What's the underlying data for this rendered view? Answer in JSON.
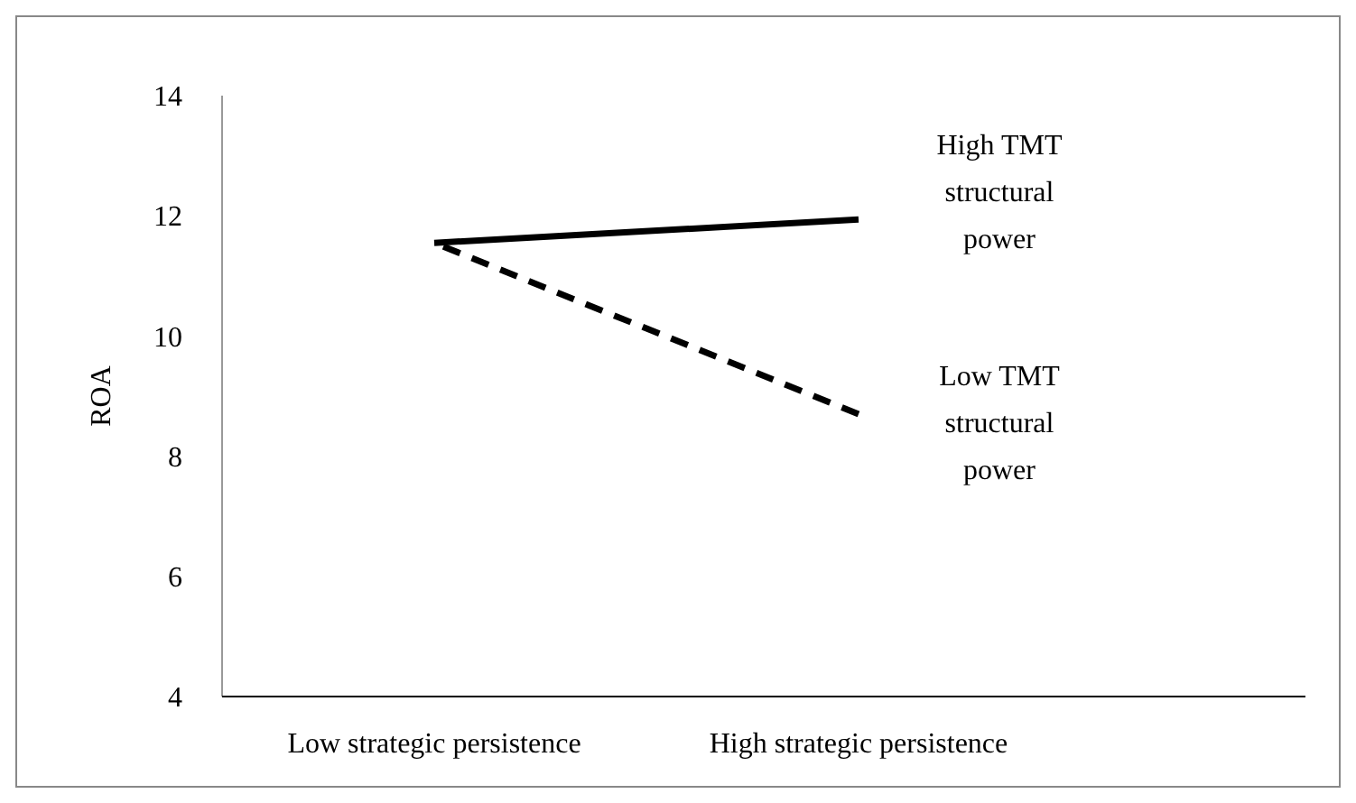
{
  "chart_data": {
    "type": "line",
    "ylabel": "ROA",
    "categories": [
      "Low strategic persistence",
      "High strategic persistence"
    ],
    "series": [
      {
        "name": "High TMT structural power",
        "color": "#000000",
        "values": [
          11.55,
          11.94
        ],
        "line_style": "solid"
      },
      {
        "name": "Low TMT structural power",
        "color": "#000000",
        "values": [
          11.55,
          8.7
        ],
        "line_style": "dashed"
      }
    ],
    "ylim": [
      4,
      14
    ],
    "yticks": [
      4,
      6,
      8,
      10,
      12,
      14
    ],
    "grid": false,
    "legend": false,
    "marker": "none"
  }
}
